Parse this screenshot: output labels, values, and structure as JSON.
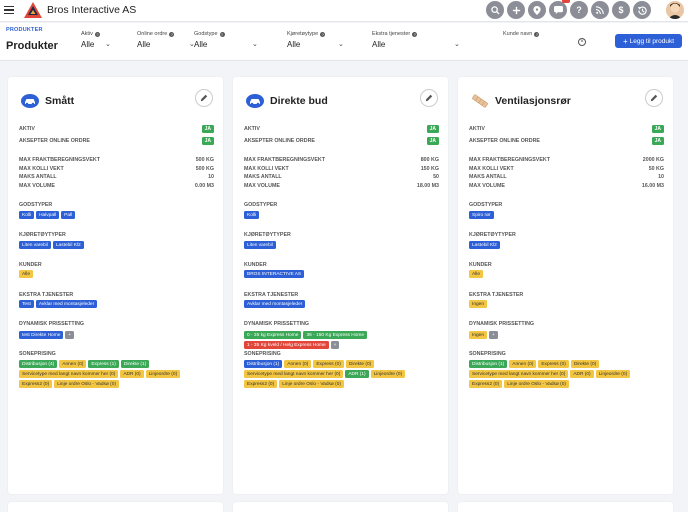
{
  "app": {
    "title": "Bros Interactive AS"
  },
  "header": {
    "breadcrumb": "PRODUKTER",
    "page_title": "Produkter",
    "add_button": "Legg til produkt",
    "filters": [
      {
        "label": "Aktiv",
        "value": "Alle"
      },
      {
        "label": "Online ordre",
        "value": "Alle"
      },
      {
        "label": "Godstype",
        "value": "Alle"
      },
      {
        "label": "Kjøretøytype",
        "value": "Alle"
      },
      {
        "label": "Ekstra tjenester",
        "value": "Alle"
      },
      {
        "label": "Kunde navn",
        "value": ""
      }
    ]
  },
  "labels": {
    "aktiv": "AKTIV",
    "aksepter": "AKSEPTER ONLINE ORDRE",
    "max_frakt": "MAX FRAKTBEREGNINGSVEKT",
    "max_kolli": "MAX KOLLI VEKT",
    "maks_antall": "MAKS ANTALL",
    "max_volume": "MAX VOLUME",
    "godstyper": "GODSTYPER",
    "kjoretoytyper": "KJØRETØYTYPER",
    "kunder": "KUNDER",
    "ekstra": "EKSTRA TJENESTER",
    "dynamisk": "DYNAMISK PRISSETTING",
    "sonepris": "SONEPRISING",
    "ja": "JA"
  },
  "cards": [
    {
      "title": "Smått",
      "icon": "car-icon",
      "max_frakt": "500 KG",
      "max_kolli": "500 KG",
      "maks_antall": "10",
      "max_volume": "0.00 M3",
      "godstyper": [
        "Kolli",
        "Halvpall",
        "Pall"
      ],
      "kjoretoy": [
        "Liten varebil",
        "Lastebil Kl2"
      ],
      "kunder": [
        "Alle"
      ],
      "ekstra": [
        "Test",
        "Avklar med montasjeleder"
      ],
      "dynamisk": [
        [
          "test Direkte Home",
          "blue"
        ],
        [
          "+",
          "grey"
        ]
      ],
      "sone": [
        [
          "Distribusjon (4)",
          "green"
        ],
        [
          "Annen (0)",
          "yellow"
        ],
        [
          "Express (1)",
          "green"
        ],
        [
          "Direkte (1)",
          "green"
        ],
        [
          "Servicetype med langt navn kommer her (0)",
          "yellow"
        ],
        [
          "ADR (0)",
          "yellow"
        ],
        [
          "Linjeordre (0)",
          "yellow"
        ],
        [
          "Express2 (0)",
          "yellow"
        ],
        [
          "Linje ordre Oslo - Vadsø (0)",
          "yellow"
        ]
      ]
    },
    {
      "title": "Direkte bud",
      "icon": "car-icon",
      "max_frakt": "800 KG",
      "max_kolli": "150 KG",
      "maks_antall": "50",
      "max_volume": "18.00 M3",
      "godstyper": [
        "Kolli"
      ],
      "kjoretoy": [
        "Liten varebil"
      ],
      "kunder": [
        "BROS INTERACTIVE AS"
      ],
      "kunder_color": "blue",
      "ekstra": [
        "Avklar med montasjeleder"
      ],
      "dynamisk": [
        [
          "0 - 35 kg Express Home",
          "green"
        ],
        [
          "36 - 150 Kg Express Home",
          "green"
        ],
        [
          "1 - 35 Kg kveld / Helg Express Home",
          "red"
        ],
        [
          "+",
          "grey"
        ]
      ],
      "sone": [
        [
          "Distribusjon (1)",
          "blue"
        ],
        [
          "Annen (0)",
          "yellow"
        ],
        [
          "Express (0)",
          "yellow"
        ],
        [
          "Direkte (0)",
          "yellow"
        ],
        [
          "Servicetype med langt navn kommer her (0)",
          "yellow"
        ],
        [
          "ADR (1)",
          "green"
        ],
        [
          "Linjeordre (0)",
          "yellow"
        ],
        [
          "Express2 (0)",
          "yellow"
        ],
        [
          "Linje ordre Oslo - Vadsø (0)",
          "yellow"
        ]
      ]
    },
    {
      "title": "Ventilasjonsrør",
      "icon": "pipe-icon",
      "max_frakt": "2000 KG",
      "max_kolli": "50 KG",
      "maks_antall": "10",
      "max_volume": "16.00 M3",
      "godstyper": [
        "Spiro rør"
      ],
      "kjoretoy": [
        "Lastebil Kl2"
      ],
      "kunder": [
        "Alle"
      ],
      "ekstra": [
        "Ingen"
      ],
      "dynamisk": [
        [
          "Ingen",
          "yellow"
        ],
        [
          "+",
          "grey"
        ]
      ],
      "sone": [
        [
          "Distribusjon (1)",
          "green"
        ],
        [
          "Annen (0)",
          "yellow"
        ],
        [
          "Express (0)",
          "yellow"
        ],
        [
          "Direkte (0)",
          "yellow"
        ],
        [
          "Servicetype med langt navn kommer her (0)",
          "yellow"
        ],
        [
          "ADR (0)",
          "yellow"
        ],
        [
          "Linjeordre (0)",
          "yellow"
        ],
        [
          "Express2 (0)",
          "yellow"
        ],
        [
          "Linje ordre Oslo - Vadsø (0)",
          "yellow"
        ]
      ]
    }
  ]
}
